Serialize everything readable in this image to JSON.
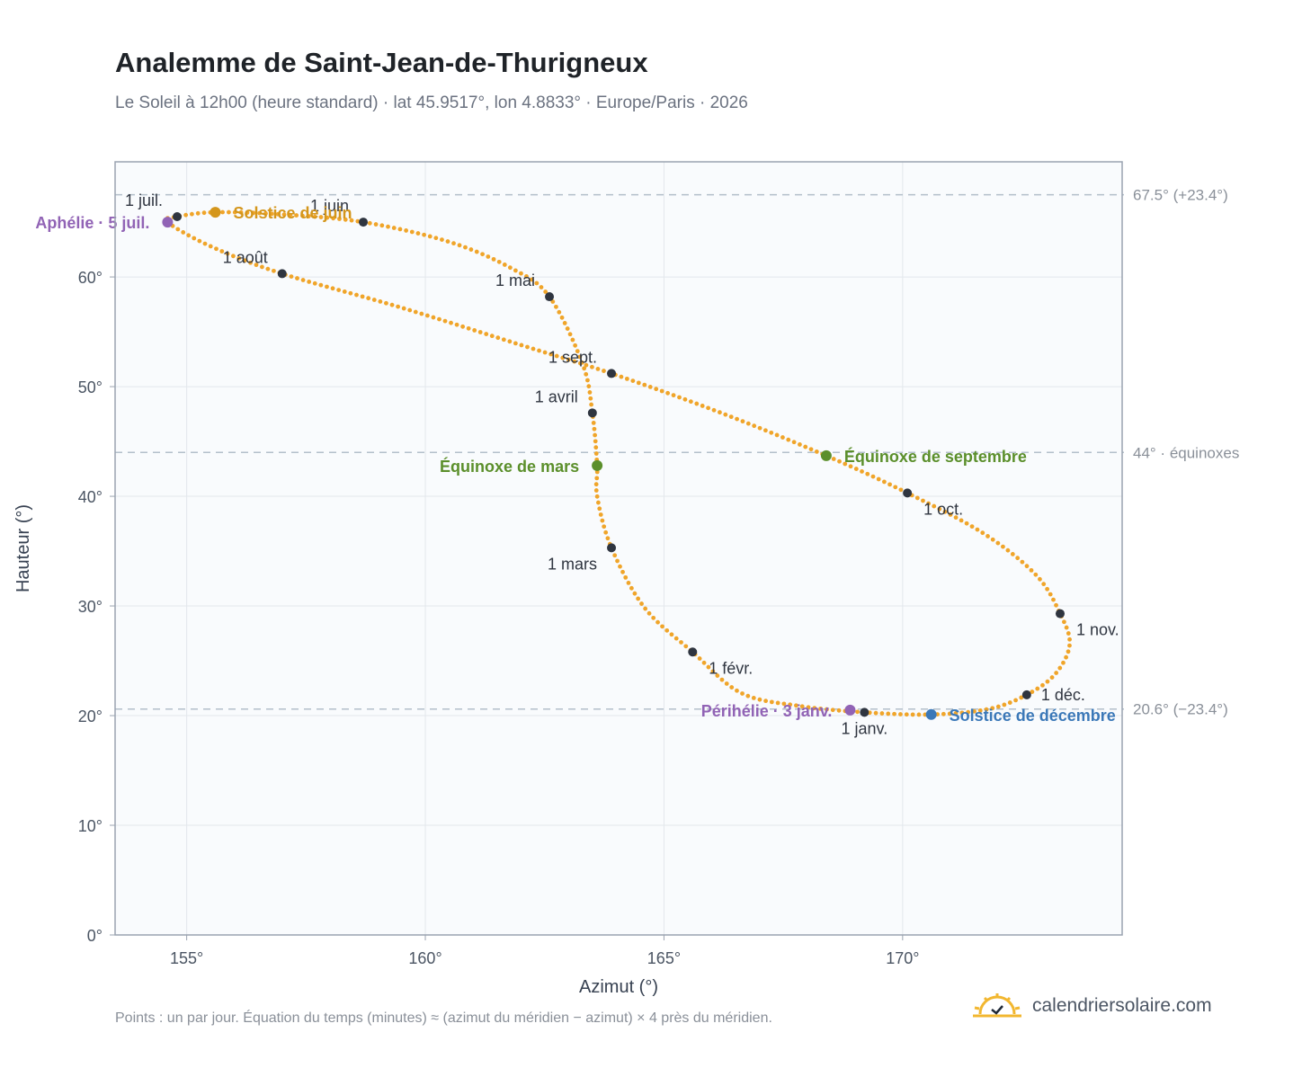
{
  "page": {
    "title": "Analemme de Saint-Jean-de-Thurigneux",
    "subtitle": "Le Soleil à 12h00 (heure standard) · lat 45.9517°, lon 4.8833° · Europe/Paris · 2026",
    "footnote": "Points : un par jour. Équation du temps (minutes) ≈ (azimut du méridien − azimut) × 4 près du méridien.",
    "brand": "calendriersolaire.com",
    "brand_icon": "sun-check-icon"
  },
  "chart_data": {
    "type": "scatter",
    "xlabel": "Azimut (°)",
    "ylabel": "Hauteur (°)",
    "xlim": [
      153.5,
      174.6
    ],
    "ylim": [
      0,
      70.5
    ],
    "xticks": [
      155,
      160,
      165,
      170
    ],
    "xtick_labels": [
      "155°",
      "160°",
      "165°",
      "170°"
    ],
    "yticks": [
      0,
      10,
      20,
      30,
      40,
      50,
      60
    ],
    "ytick_labels": [
      "0°",
      "10°",
      "20°",
      "30°",
      "40°",
      "50°",
      "60°"
    ],
    "grid": true,
    "series_color": "#f0a52a",
    "reference_lines": [
      {
        "y": 67.5,
        "label": "67.5° (+23.4°)"
      },
      {
        "y": 44.0,
        "label": "44° · équinoxes"
      },
      {
        "y": 20.6,
        "label": "20.6° (−23.4°)"
      }
    ],
    "months": [
      {
        "label": "1 janv.",
        "x": 169.2,
        "y": 20.3,
        "anchor": "below"
      },
      {
        "label": "1 févr.",
        "x": 165.6,
        "y": 25.8,
        "anchor": "below-right"
      },
      {
        "label": "1 mars",
        "x": 163.9,
        "y": 35.3,
        "anchor": "below-left"
      },
      {
        "label": "1 avril",
        "x": 163.5,
        "y": 47.6,
        "anchor": "above-left"
      },
      {
        "label": "1 mai",
        "x": 162.6,
        "y": 58.2,
        "anchor": "above-left"
      },
      {
        "label": "1 juin",
        "x": 158.7,
        "y": 65.0,
        "anchor": "above-left"
      },
      {
        "label": "1 juil.",
        "x": 154.8,
        "y": 65.5,
        "anchor": "above-left"
      },
      {
        "label": "1 août",
        "x": 157.0,
        "y": 60.3,
        "anchor": "above-left"
      },
      {
        "label": "1 sept.",
        "x": 163.9,
        "y": 51.2,
        "anchor": "above-left"
      },
      {
        "label": "1 oct.",
        "x": 170.1,
        "y": 40.3,
        "anchor": "below-right"
      },
      {
        "label": "1 nov.",
        "x": 173.3,
        "y": 29.3,
        "anchor": "below-right"
      },
      {
        "label": "1 déc.",
        "x": 172.6,
        "y": 21.9,
        "anchor": "right"
      }
    ],
    "events": [
      {
        "label": "Solstice de juin",
        "x": 155.6,
        "y": 65.9,
        "color": "#d4961c",
        "anchor": "right"
      },
      {
        "label": "Aphélie · 5 juil.",
        "x": 154.6,
        "y": 65.0,
        "color": "#9163b5",
        "anchor": "left"
      },
      {
        "label": "Équinoxe de mars",
        "x": 163.6,
        "y": 42.8,
        "color": "#5b8f2b",
        "anchor": "left"
      },
      {
        "label": "Équinoxe de septembre",
        "x": 168.4,
        "y": 43.7,
        "color": "#5b8f2b",
        "anchor": "right"
      },
      {
        "label": "Périhélie · 3 janv.",
        "x": 168.9,
        "y": 20.5,
        "color": "#9163b5",
        "anchor": "left"
      },
      {
        "label": "Solstice de décembre",
        "x": 170.6,
        "y": 20.1,
        "color": "#3b78b8",
        "anchor": "right"
      }
    ],
    "curve": [
      [
        170.6,
        20.1
      ],
      [
        169.2,
        20.3
      ],
      [
        167.8,
        20.9
      ],
      [
        166.6,
        22.1
      ],
      [
        165.6,
        25.8
      ],
      [
        164.6,
        29.8
      ],
      [
        163.9,
        35.3
      ],
      [
        163.6,
        40.0
      ],
      [
        163.6,
        42.8
      ],
      [
        163.5,
        47.6
      ],
      [
        163.3,
        52.0
      ],
      [
        162.6,
        58.2
      ],
      [
        161.8,
        60.8
      ],
      [
        160.5,
        63.2
      ],
      [
        158.7,
        65.0
      ],
      [
        157.0,
        65.7
      ],
      [
        155.6,
        65.9
      ],
      [
        154.8,
        65.5
      ],
      [
        154.6,
        65.0
      ],
      [
        155.5,
        62.8
      ],
      [
        157.0,
        60.3
      ],
      [
        159.5,
        57.2
      ],
      [
        162.0,
        53.8
      ],
      [
        163.9,
        51.2
      ],
      [
        166.2,
        47.6
      ],
      [
        168.4,
        43.7
      ],
      [
        170.1,
        40.3
      ],
      [
        171.7,
        36.6
      ],
      [
        172.8,
        32.8
      ],
      [
        173.3,
        29.3
      ],
      [
        173.5,
        26.5
      ],
      [
        173.2,
        23.8
      ],
      [
        172.6,
        21.9
      ],
      [
        171.8,
        20.6
      ],
      [
        170.6,
        20.1
      ]
    ]
  }
}
